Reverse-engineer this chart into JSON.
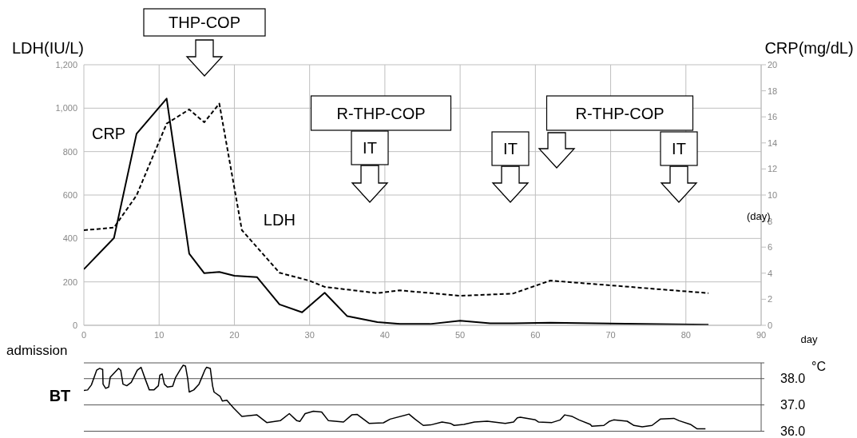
{
  "chart_data": [
    {
      "type": "line",
      "ylabel": "LDH(IU/L)",
      "y2label": "CRP(mg/dL)",
      "xlabel": "day",
      "xlim": [
        0,
        90
      ],
      "xticks": [
        0,
        10,
        20,
        30,
        40,
        50,
        60,
        70,
        80,
        90
      ],
      "ylim": [
        0,
        1200
      ],
      "yticks": [
        0,
        200,
        400,
        600,
        800,
        {
          "value": 1000,
          "label": "1,000"
        },
        {
          "value": 1200,
          "label": "1,200"
        }
      ],
      "y2lim": [
        0,
        20
      ],
      "y2ticks": [
        0,
        2,
        4,
        6,
        8,
        10,
        12,
        14,
        16,
        18,
        20
      ],
      "grid": true,
      "series": [
        {
          "name": "LDH",
          "color": "#000000",
          "line_style": "dashed",
          "x": [
            0,
            4,
            7,
            11,
            14,
            16,
            18,
            21,
            26,
            30,
            32,
            39,
            42,
            50,
            57,
            62,
            83
          ],
          "values": [
            438,
            450,
            598,
            929,
            994,
            935,
            1021,
            438,
            242,
            205,
            177,
            148,
            161,
            136,
            146,
            206,
            148
          ]
        },
        {
          "name": "CRP",
          "color": "#000000",
          "line_style": "solid",
          "axis": "y2",
          "x": [
            0,
            4,
            7,
            11,
            14,
            16,
            18,
            20,
            23,
            26,
            29,
            32,
            35,
            39,
            42,
            46,
            50,
            54,
            57,
            62,
            83
          ],
          "values": [
            4.3,
            6.7,
            14.7,
            17.4,
            5.5,
            4.0,
            4.1,
            3.8,
            3.7,
            1.6,
            1.0,
            2.5,
            0.7,
            0.25,
            0.1,
            0.1,
            0.35,
            0.15,
            0.15,
            0.2,
            0.05
          ]
        }
      ],
      "annotations": [
        "(day)",
        "admission",
        "THP-COP",
        "R-THP-COP",
        "IT",
        "IT",
        "R-THP-COP",
        "IT"
      ]
    },
    {
      "type": "line",
      "title": "BT",
      "ylabel": "°C",
      "xlim": [
        0,
        90
      ],
      "ylim": [
        36,
        38.6
      ],
      "yticks": [
        {
          "value": 36,
          "label": "36.0"
        },
        {
          "value": 37,
          "label": "37.0"
        },
        {
          "value": 38,
          "label": "38.0"
        },
        {
          "value": 38.6,
          "label": null
        }
      ],
      "grid": "y",
      "tick_labels": "y",
      "series": [
        {
          "color": "#000000",
          "line_style": "solid",
          "x": [
            0,
            0.5,
            1.0,
            1.7,
            2.1,
            2.5,
            2.55,
            2.9,
            3.3,
            3.5,
            4.6,
            4.9,
            5.2,
            5.7,
            6.3,
            7.1,
            7.6,
            8.2,
            8.7,
            9.3,
            9.9,
            10.1,
            10.4,
            10.7,
            11.1,
            11.8,
            12.2,
            12.8,
            13.2,
            13.5,
            13.8,
            14.0,
            14.6,
            15.3,
            16.1,
            16.3,
            16.8,
            17.1,
            17.3,
            18.1,
            18.4,
            19.0,
            19.9,
            21.0,
            23.0,
            24.3,
            26.1,
            27.3,
            28.3,
            28.7,
            29.4,
            30.5,
            31.6,
            32.5,
            34.5,
            35.6,
            36.3,
            37.9,
            39.8,
            40.7,
            43.2,
            44.0,
            45.1,
            46.1,
            47.6,
            48.7,
            49.2,
            50.5,
            51.9,
            53.6,
            56.0,
            57.1,
            57.6,
            58.0,
            60.0,
            60.4,
            62.2,
            63.3,
            63.9,
            64.9,
            65.8,
            67.3,
            67.5,
            69.1,
            69.8,
            70.4,
            72.2,
            73.1,
            74.2,
            75.5,
            76.6,
            78.4,
            79.1,
            80.6,
            81.5,
            82.6
          ],
          "values": [
            37.55,
            37.57,
            37.76,
            38.32,
            38.39,
            38.35,
            37.79,
            37.63,
            37.68,
            38.05,
            38.39,
            38.32,
            37.79,
            37.73,
            37.86,
            38.32,
            38.43,
            37.95,
            37.57,
            37.57,
            37.73,
            38.13,
            38.18,
            37.79,
            37.68,
            37.71,
            38.05,
            38.34,
            38.51,
            38.48,
            38.0,
            37.49,
            37.57,
            37.79,
            38.34,
            38.43,
            38.39,
            37.73,
            37.49,
            37.33,
            37.15,
            37.18,
            36.88,
            36.56,
            36.62,
            36.33,
            36.4,
            36.67,
            36.4,
            36.37,
            36.67,
            36.76,
            36.73,
            36.4,
            36.35,
            36.62,
            36.64,
            36.3,
            36.32,
            36.46,
            36.65,
            36.46,
            36.22,
            36.24,
            36.35,
            36.3,
            36.22,
            36.26,
            36.35,
            36.38,
            36.3,
            36.35,
            36.51,
            36.53,
            36.43,
            36.35,
            36.33,
            36.43,
            36.62,
            36.56,
            36.43,
            36.26,
            36.19,
            36.22,
            36.37,
            36.43,
            36.38,
            36.22,
            36.17,
            36.22,
            36.46,
            36.49,
            36.4,
            36.26,
            36.09,
            36.09
          ]
        }
      ]
    }
  ]
}
